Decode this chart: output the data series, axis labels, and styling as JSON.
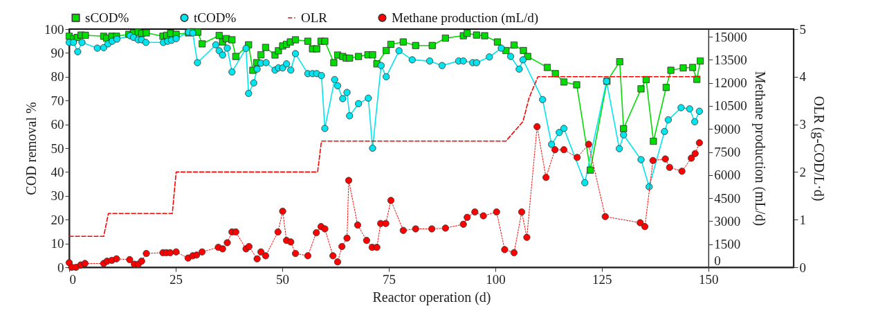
{
  "chart_data": {
    "type": "line",
    "xlabel": "Reactor operation (d)",
    "ylabel": "COD removal %",
    "y2label": "Methane production (mL/d)",
    "y3label": "OLR (g-COD/L·d)",
    "xlim": [
      0,
      170
    ],
    "xticks": [
      0,
      25,
      50,
      75,
      100,
      125,
      150
    ],
    "ylim": [
      0,
      100
    ],
    "yticks": [
      0,
      10,
      20,
      30,
      40,
      50,
      60,
      70,
      80,
      90,
      100
    ],
    "y2lim": [
      0,
      15500
    ],
    "y2ticks": [
      0,
      1500,
      3000,
      4500,
      6000,
      7500,
      9000,
      10500,
      12000,
      13500,
      15000
    ],
    "y3lim": [
      0,
      5
    ],
    "y3ticks": [
      0,
      1,
      2,
      3,
      4,
      5
    ],
    "legend": "top",
    "series": [
      {
        "name": "sCOD%",
        "color": "#00dd00",
        "marker": "square",
        "line_style": "solid",
        "x": [
          0,
          1.0,
          1.9,
          2.8,
          3.8,
          8.1,
          8.8,
          10.0,
          11.1,
          14.0,
          15.1,
          16.2,
          17.0,
          18.1,
          22.0,
          22.9,
          23.8,
          25.1,
          28.0,
          29.0,
          30.2,
          31.2,
          35.2,
          36.0,
          36.9,
          38.2,
          39.1,
          42.1,
          43.1,
          44.0,
          45.0,
          46.1,
          48.3,
          49.1,
          50.1,
          51.0,
          51.9,
          53.1,
          56.0,
          57.1,
          58.1,
          59.1,
          60.0,
          62.1,
          63.0,
          64.2,
          65.0,
          65.8,
          67.9,
          70.1,
          71.2,
          72.2,
          74.4,
          75.5,
          78.4,
          81.3,
          85.2,
          88.3,
          92.5,
          93.4,
          95.6,
          97.5,
          100.5,
          102.5,
          104.4,
          106.6,
          107.6,
          112.2,
          114.1,
          116.1,
          119.1,
          122.3,
          126.2,
          129.2,
          130.1,
          134.2,
          135.4,
          137.1,
          140.1,
          141.2,
          144.1,
          146.3,
          147.3,
          148.1
        ],
        "values": [
          97.0,
          96.0,
          96.5,
          97.5,
          97.4,
          97.0,
          96.2,
          97.0,
          97.0,
          97.8,
          98.4,
          98.7,
          98.2,
          98.4,
          97.0,
          97.4,
          98.2,
          97.8,
          98.4,
          98.9,
          98.7,
          93.8,
          97.3,
          94.6,
          96.0,
          95.5,
          88.5,
          93.4,
          82.7,
          85.9,
          89.2,
          92.3,
          89.1,
          90.9,
          92.9,
          93.6,
          94.6,
          95.5,
          94.9,
          91.7,
          91.7,
          94.9,
          94.9,
          85.9,
          89.1,
          88.5,
          87.8,
          87.8,
          88.5,
          89.2,
          89.2,
          85.4,
          91.0,
          93.6,
          94.6,
          93.1,
          93.1,
          96.2,
          97.2,
          98.2,
          97.5,
          97.2,
          94.6,
          91.0,
          93.3,
          91.0,
          88.5,
          83.9,
          81.3,
          77.8,
          76.6,
          40.8,
          78.1,
          86.3,
          58.2,
          74.9,
          78.8,
          52.9,
          75.5,
          82.7,
          83.7,
          83.9,
          78.9,
          86.6
        ]
      },
      {
        "name": "tCOD%",
        "color": "#00e5ee",
        "marker": "circle",
        "line_style": "solid",
        "x": [
          0,
          1.0,
          2.0,
          3.0,
          6.6,
          8.1,
          9.1,
          10.1,
          11.2,
          14.3,
          15.1,
          16.2,
          17.0,
          18.0,
          22.1,
          23.1,
          24.0,
          25.1,
          28.0,
          29.0,
          30.1,
          34.4,
          35.2,
          36.0,
          37.1,
          38.2,
          41.5,
          42.1,
          43.3,
          44.1,
          45.0,
          46.2,
          48.3,
          49.1,
          50.1,
          51.0,
          52.0,
          53.1,
          56.0,
          57.1,
          58.1,
          59.2,
          60.0,
          62.3,
          63.0,
          64.2,
          65.2,
          65.8,
          67.9,
          70.2,
          71.2,
          73.2,
          74.4,
          77.4,
          80.5,
          84.6,
          87.5,
          91.4,
          92.5,
          94.7,
          95.6,
          98.6,
          101.4,
          103.6,
          105.6,
          106.5,
          111.1,
          113.2,
          115.0,
          116.1,
          121.0,
          126.1,
          129.1,
          130.1,
          134.2,
          136.1,
          139.7,
          140.6,
          143.6,
          145.6,
          146.8,
          147.9
        ],
        "values": [
          94.4,
          94.4,
          90.5,
          94.4,
          92.0,
          92.2,
          93.8,
          94.9,
          95.8,
          97.2,
          96.5,
          95.5,
          95.5,
          94.4,
          94.4,
          94.9,
          95.3,
          96.0,
          98.7,
          98.4,
          85.9,
          93.4,
          90.9,
          89.1,
          92.0,
          82.0,
          91.9,
          73.0,
          77.4,
          83.2,
          85.7,
          85.9,
          82.8,
          83.7,
          83.7,
          85.4,
          82.8,
          89.7,
          81.3,
          81.3,
          81.3,
          80.5,
          58.3,
          78.8,
          76.2,
          70.8,
          73.4,
          63.6,
          68.7,
          71.0,
          50.0,
          84.7,
          80.0,
          90.9,
          87.1,
          86.6,
          84.7,
          86.6,
          86.6,
          85.9,
          85.9,
          88.3,
          92.0,
          88.5,
          83.2,
          87.1,
          70.4,
          51.6,
          56.6,
          58.3,
          35.5,
          78.1,
          49.8,
          55.6,
          45.2,
          33.8,
          57.0,
          61.9,
          67.0,
          66.5,
          61.1,
          65.5
        ]
      },
      {
        "name": "OLR",
        "color": "#ff0000",
        "marker": "none",
        "line_style": "dashed",
        "axis": "y3",
        "x": [
          0,
          8.1,
          9.2,
          24.2,
          25.1,
          58.3,
          59.2,
          102.5,
          106.5,
          107.9,
          110.0,
          148.0
        ],
        "values": [
          0.65,
          0.65,
          1.13,
          1.13,
          2.0,
          2.0,
          2.65,
          2.65,
          3.06,
          3.55,
          4.0,
          4.0
        ]
      },
      {
        "name": "Methane production (mL/d)",
        "color": "#ff0000",
        "marker": "circle",
        "line_style": "dotted",
        "axis": "y2",
        "x": [
          0,
          0.6,
          1.6,
          2.7,
          3.7,
          8.1,
          8.9,
          10.0,
          11.1,
          14.2,
          15.3,
          16.2,
          17.0,
          18.1,
          22.0,
          22.8,
          23.7,
          25.1,
          27.9,
          29.0,
          29.9,
          31.2,
          35.0,
          36.0,
          37.1,
          38.2,
          39.1,
          41.5,
          42.2,
          44.1,
          45.0,
          46.1,
          49.0,
          50.1,
          51.0,
          52.0,
          53.1,
          56.0,
          58.0,
          59.1,
          60.0,
          61.9,
          63.0,
          64.0,
          65.2,
          65.6,
          67.7,
          69.8,
          71.1,
          72.2,
          73.1,
          74.3,
          75.5,
          78.4,
          81.3,
          85.1,
          88.3,
          92.5,
          93.4,
          95.2,
          97.2,
          100.3,
          102.2,
          104.4,
          106.2,
          107.4,
          109.8,
          111.9,
          114.0,
          116.1,
          119.2,
          121.9,
          125.8,
          134.0,
          135.1,
          137.0,
          139.9,
          140.9,
          143.8,
          146.0,
          146.9,
          147.9
        ],
        "values": [
          300,
          0,
          0,
          150,
          250,
          250,
          400,
          450,
          550,
          500,
          200,
          200,
          400,
          900,
          950,
          950,
          950,
          1000,
          600,
          750,
          800,
          1000,
          1300,
          1200,
          1600,
          2300,
          2300,
          1200,
          1350,
          550,
          1000,
          750,
          2300,
          3650,
          1750,
          1650,
          900,
          750,
          2250,
          2650,
          2500,
          750,
          350,
          1350,
          1900,
          5650,
          2750,
          1750,
          1300,
          1300,
          2850,
          2850,
          4350,
          2400,
          2500,
          2500,
          2550,
          2800,
          3250,
          3600,
          3350,
          3600,
          1150,
          950,
          3600,
          1950,
          9150,
          5850,
          7650,
          7650,
          7150,
          8000,
          3300,
          2900,
          2650,
          6950,
          7050,
          6500,
          6250,
          7100,
          7400,
          8100
        ]
      }
    ]
  }
}
